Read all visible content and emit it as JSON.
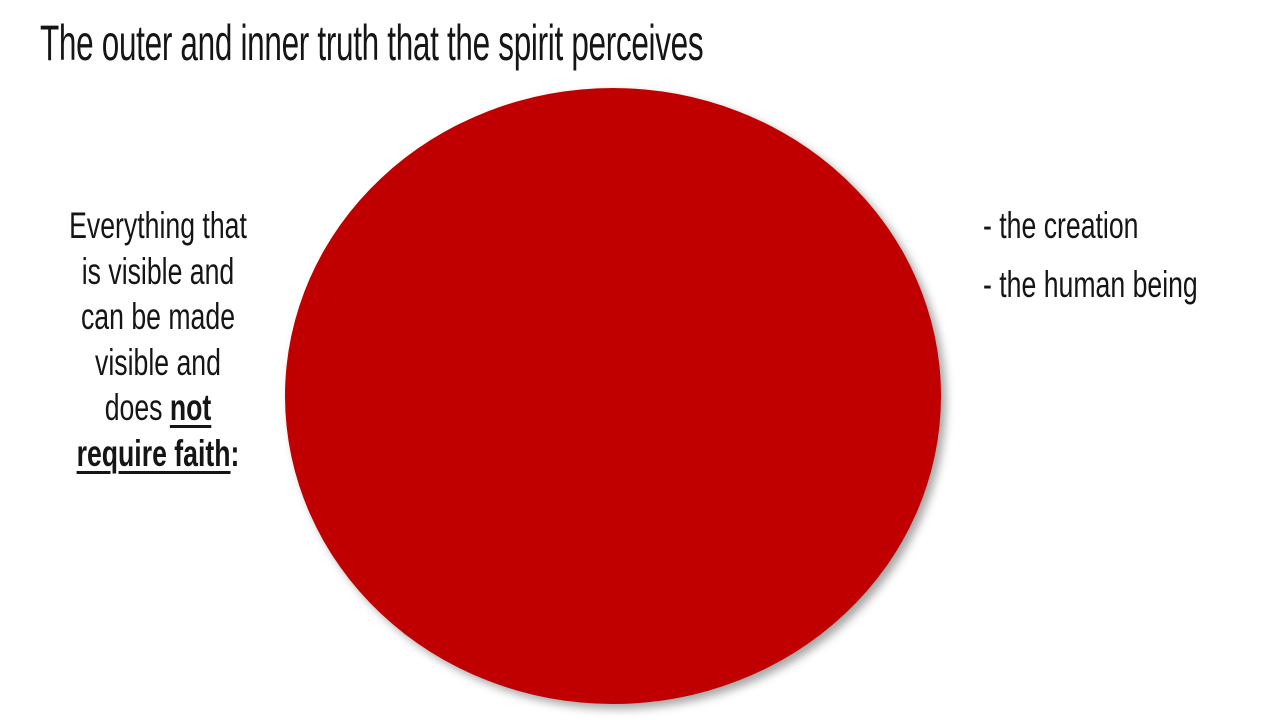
{
  "slide": {
    "title": "The outer and inner truth that the spirit perceives",
    "left_caption": {
      "line1": "Everything that",
      "line2": "is visible and",
      "line3": "can be made",
      "line4": "visible and",
      "line5_prefix": "does ",
      "line5_emphasis": "not",
      "line6_emphasis": "require faith",
      "line6_suffix": ":"
    },
    "right_items": [
      "- the creation",
      "- the human being"
    ],
    "colors": {
      "circle_fill": "#C00000",
      "background": "#FFFFFF",
      "text": "#151515"
    }
  }
}
